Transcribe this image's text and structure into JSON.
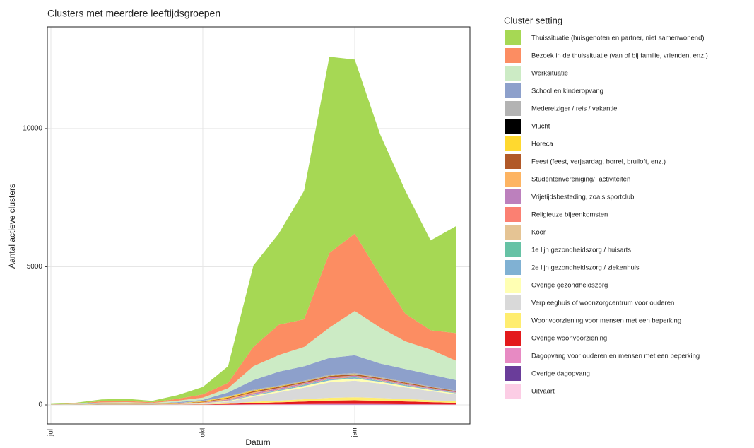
{
  "chart_data": {
    "type": "stacked-area",
    "title": "Clusters met meerdere leeftijdsgroepen",
    "xlabel": "Datum",
    "ylabel": "Aantal actieve clusters",
    "legend_title": "Cluster setting",
    "legend": "right",
    "grid": true,
    "categories": [
      "jul",
      null,
      null,
      null,
      null,
      null,
      "okt",
      null,
      null,
      null,
      null,
      null,
      "jan",
      null,
      null,
      null,
      null
    ],
    "ylim": [
      -690,
      13680
    ],
    "yticks": [
      0,
      5000,
      10000
    ],
    "series": [
      {
        "name": "Thuissituatie (huisgenoten en partner, niet samenwonend)",
        "color": "#a6d854",
        "values": [
          10,
          30,
          70,
          80,
          50,
          130,
          270,
          600,
          2950,
          3300,
          4650,
          7100,
          6300,
          5100,
          4450,
          3250,
          3870
        ]
      },
      {
        "name": "Bezoek in de thuissituatie (van of bij familie, vrienden, enz.)",
        "color": "#fc8d62",
        "values": [
          8,
          15,
          40,
          40,
          25,
          70,
          120,
          200,
          700,
          1100,
          1000,
          2700,
          2800,
          1900,
          1000,
          700,
          1000
        ]
      },
      {
        "name": "Werksituatie",
        "color": "#ccebc5",
        "values": [
          4,
          10,
          20,
          20,
          15,
          50,
          80,
          150,
          500,
          600,
          700,
          1100,
          1600,
          1300,
          1000,
          900,
          700
        ]
      },
      {
        "name": "School en kinderopvang",
        "color": "#8da0cb",
        "values": [
          3,
          5,
          13,
          13,
          12,
          28,
          30,
          135,
          350,
          500,
          520,
          600,
          640,
          490,
          465,
          430,
          380
        ]
      },
      {
        "name": "Medereiziger / reis / vakantie",
        "color": "#b3b3b3",
        "values": [
          2,
          6,
          20,
          25,
          15,
          15,
          15,
          20,
          25,
          25,
          30,
          40,
          40,
          30,
          25,
          20,
          18
        ]
      },
      {
        "name": "Vlucht",
        "color": "#000000",
        "values": [
          0,
          0,
          0,
          0,
          0,
          0,
          1,
          1,
          2,
          2,
          2,
          2,
          2,
          1,
          1,
          1,
          1
        ]
      },
      {
        "name": "Horeca",
        "color": "#ffd92f",
        "values": [
          1,
          3,
          8,
          10,
          6,
          10,
          20,
          30,
          30,
          20,
          12,
          10,
          8,
          6,
          5,
          4,
          3
        ]
      },
      {
        "name": "Feest (feest, verjaardag, borrel, bruiloft, enz.)",
        "color": "#b15928",
        "values": [
          1,
          4,
          10,
          12,
          8,
          12,
          20,
          30,
          40,
          40,
          40,
          45,
          45,
          40,
          35,
          30,
          25
        ]
      },
      {
        "name": "Studentenvereniging/−activiteiten",
        "color": "#fdb462",
        "values": [
          0,
          1,
          2,
          3,
          2,
          6,
          20,
          40,
          30,
          15,
          8,
          6,
          5,
          4,
          3,
          3,
          2
        ]
      },
      {
        "name": "Vrijetijdsbesteding, zoals sportclub",
        "color": "#bc80bd",
        "values": [
          0,
          1,
          2,
          2,
          2,
          4,
          10,
          25,
          40,
          40,
          35,
          35,
          35,
          30,
          28,
          25,
          22
        ]
      },
      {
        "name": "Religieuze bijeenkomsten",
        "color": "#fb8072",
        "values": [
          0,
          0,
          0,
          0,
          0,
          1,
          2,
          5,
          10,
          12,
          15,
          18,
          18,
          15,
          12,
          10,
          8
        ]
      },
      {
        "name": "Koor",
        "color": "#e5c494",
        "values": [
          0,
          0,
          0,
          0,
          0,
          1,
          3,
          8,
          10,
          8,
          6,
          5,
          4,
          3,
          3,
          2,
          2
        ]
      },
      {
        "name": "1e lijn gezondheidszorg / huisarts",
        "color": "#66c2a5",
        "values": [
          0,
          0,
          1,
          1,
          1,
          1,
          3,
          6,
          10,
          12,
          14,
          16,
          16,
          14,
          12,
          10,
          8
        ]
      },
      {
        "name": "2e lijn gezondheidszorg / ziekenhuis",
        "color": "#80b1d3",
        "values": [
          0,
          0,
          1,
          1,
          1,
          2,
          4,
          10,
          20,
          25,
          30,
          35,
          35,
          30,
          25,
          20,
          15
        ]
      },
      {
        "name": "Overige gezondheidszorg",
        "color": "#ffffb3",
        "values": [
          0,
          1,
          2,
          2,
          2,
          3,
          8,
          20,
          40,
          50,
          60,
          70,
          75,
          65,
          55,
          45,
          35
        ]
      },
      {
        "name": "Verpleeghuis of woonzorgcentrum voor ouderen",
        "color": "#d9d9d9",
        "values": [
          1,
          2,
          5,
          5,
          4,
          8,
          20,
          60,
          180,
          300,
          420,
          560,
          600,
          520,
          420,
          330,
          250
        ]
      },
      {
        "name": "Woonvoorziening voor mensen met een beperking",
        "color": "#ffed6f",
        "values": [
          0,
          1,
          3,
          3,
          2,
          4,
          10,
          25,
          45,
          60,
          80,
          100,
          110,
          100,
          85,
          70,
          55
        ]
      },
      {
        "name": "Overige woonvoorziening",
        "color": "#e31a1c",
        "values": [
          0,
          1,
          2,
          2,
          2,
          4,
          10,
          25,
          50,
          70,
          95,
          120,
          130,
          120,
          100,
          80,
          60
        ]
      },
      {
        "name": "Dagopvang voor ouderen en mensen met een beperking",
        "color": "#e78ac3",
        "values": [
          0,
          0,
          1,
          1,
          1,
          1,
          3,
          6,
          10,
          14,
          18,
          22,
          22,
          20,
          16,
          12,
          9
        ]
      },
      {
        "name": "Overige dagopvang",
        "color": "#6a3d9a",
        "values": [
          0,
          0,
          0,
          0,
          0,
          0,
          1,
          2,
          4,
          5,
          6,
          8,
          8,
          7,
          6,
          5,
          4
        ]
      },
      {
        "name": "Uitvaart",
        "color": "#fccde5",
        "values": [
          0,
          0,
          0,
          0,
          0,
          0,
          1,
          2,
          3,
          4,
          5,
          6,
          6,
          5,
          4,
          3,
          2
        ]
      }
    ]
  }
}
